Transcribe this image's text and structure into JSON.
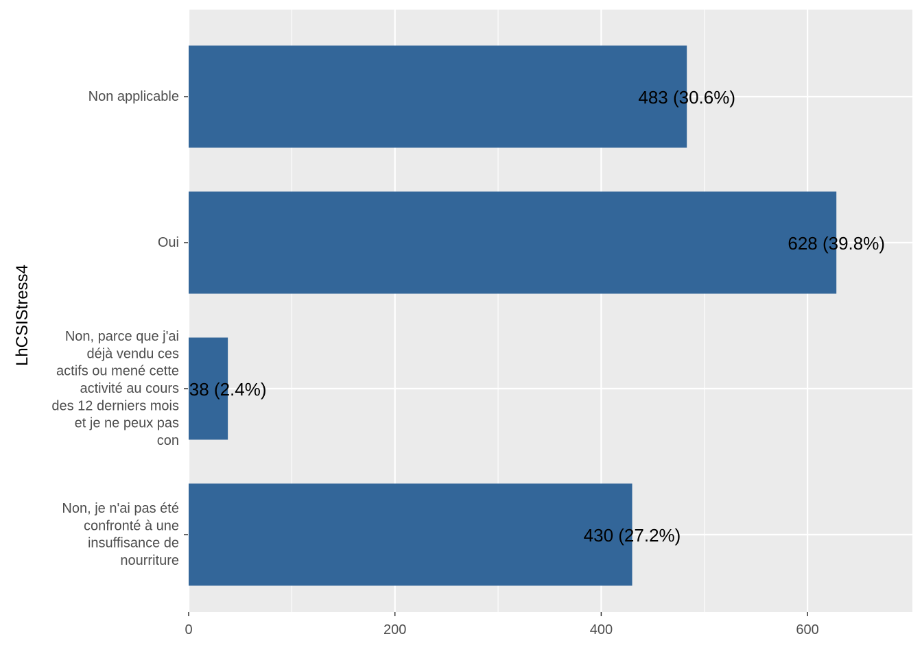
{
  "chart_data": {
    "type": "bar",
    "orientation": "horizontal",
    "ylabel": "LhCSIStress4",
    "xlabel": "",
    "categories": [
      [
        "Non applicable"
      ],
      [
        "Oui"
      ],
      [
        "Non, parce que j'ai",
        "déjà vendu ces",
        "actifs ou mené cette",
        "activité au cours",
        "des 12 derniers mois",
        "et je ne peux pas",
        "con"
      ],
      [
        "Non, je n'ai pas été",
        "confronté à une",
        "insuffisance de",
        "nourriture"
      ]
    ],
    "values": [
      483,
      628,
      38,
      430
    ],
    "data_labels": [
      "483 (30.6%)",
      "628 (39.8%)",
      "38 (2.4%)",
      "430 (27.2%)"
    ],
    "xlim": [
      0,
      700
    ],
    "x_ticks": [
      0,
      200,
      400,
      600
    ],
    "x_tick_labels": [
      "0",
      "200",
      "400",
      "600"
    ],
    "grid": true,
    "colors": {
      "bar": "#336699",
      "panel": "#ebebeb",
      "grid": "#ffffff",
      "tick_label": "#4d4d4d",
      "text": "#000000"
    }
  }
}
